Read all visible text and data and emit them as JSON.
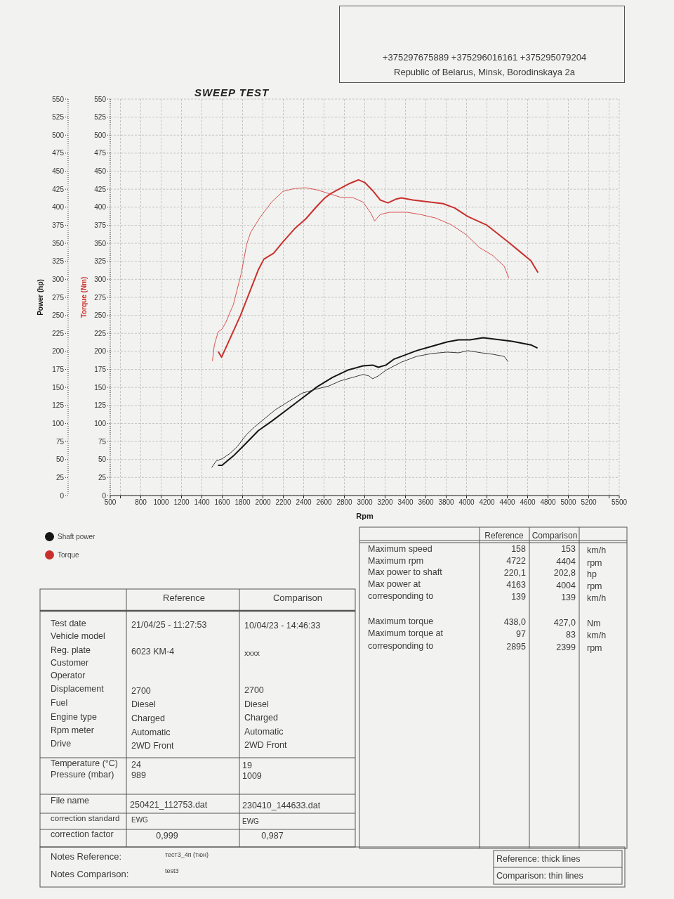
{
  "chart_data": {
    "type": "line",
    "title": "SWEEP TEST",
    "xlabel": "Rpm",
    "ylabel": "Power (hp)",
    "y2label": "Torque (Nm)",
    "xlim": [
      500,
      5500
    ],
    "xticks": [
      500,
      {
        "value": 600,
        "label": null
      },
      800,
      1000,
      1200,
      1400,
      1600,
      1800,
      2000,
      2200,
      2400,
      2600,
      2800,
      3000,
      3200,
      3400,
      3600,
      3800,
      4000,
      4200,
      4400,
      4600,
      4800,
      5000,
      5200,
      {
        "value": 5400,
        "label": null
      },
      5500
    ],
    "ylim": [
      0,
      550
    ],
    "yticks": [
      0,
      25,
      50,
      75,
      100,
      125,
      150,
      175,
      200,
      225,
      250,
      275,
      300,
      325,
      350,
      375,
      400,
      425,
      450,
      475,
      500,
      525,
      550
    ],
    "y2lim": [
      0,
      550
    ],
    "y2ticks": [
      0,
      25,
      50,
      75,
      100,
      125,
      150,
      175,
      200,
      225,
      250,
      275,
      300,
      325,
      350,
      375,
      400,
      425,
      450,
      475,
      500,
      525,
      550
    ],
    "grid": true,
    "legend": "bottom left",
    "series": [
      {
        "name": "Shaft power",
        "color": "#151515",
        "x": [
          1564,
          1598,
          1710,
          1823,
          1954,
          2085,
          2235,
          2385,
          2534,
          2684,
          2834,
          2984,
          3078,
          3134,
          3209,
          3284,
          3377,
          3509,
          3658,
          3808,
          3921,
          4033,
          4163,
          4333,
          4445,
          4632,
          4692
        ],
        "values": [
          42,
          42,
          55,
          71,
          90,
          103,
          119,
          135,
          151,
          164,
          174,
          180,
          181,
          178,
          181,
          189,
          194,
          201,
          207,
          213,
          216,
          216,
          219,
          216,
          214,
          209,
          205
        ]
      },
      {
        "color": "#3a3a3a",
        "x": [
          1497,
          1542,
          1598,
          1673,
          1748,
          1841,
          1916,
          2010,
          2122,
          2235,
          2385,
          2534,
          2647,
          2759,
          2909,
          2984,
          3040,
          3078,
          3134,
          3209,
          3359,
          3509,
          3658,
          3808,
          3921,
          4014,
          4146,
          4258,
          4370,
          4407
        ],
        "values": [
          39,
          48,
          51,
          58,
          68,
          85,
          95,
          106,
          119,
          129,
          142,
          148,
          152,
          159,
          165,
          168,
          166,
          162,
          166,
          174,
          185,
          193,
          197,
          199,
          198,
          201,
          198,
          196,
          193,
          186
        ]
      },
      {
        "name": "Torque",
        "color": "#c9302c",
        "axis": "y2",
        "x": [
          1564,
          1594,
          1780,
          1954,
          2010,
          2104,
          2197,
          2310,
          2422,
          2534,
          2609,
          2666,
          2759,
          2853,
          2939,
          3003,
          3078,
          3153,
          3228,
          3302,
          3359,
          3471,
          3584,
          3771,
          3883,
          4014,
          4201,
          4407,
          4519,
          4631,
          4699
        ],
        "values": [
          199,
          192,
          250,
          313,
          328,
          336,
          352,
          370,
          384,
          402,
          413,
          419,
          426,
          433,
          438,
          434,
          423,
          410,
          406,
          411,
          413,
          410,
          408,
          405,
          399,
          387,
          375,
          352,
          339,
          326,
          310
        ]
      },
      {
        "color": "#d9534f",
        "axis": "y2",
        "x": [
          1504,
          1523,
          1560,
          1598,
          1635,
          1691,
          1710,
          1785,
          1841,
          1879,
          1972,
          2085,
          2197,
          2310,
          2422,
          2534,
          2647,
          2759,
          2890,
          2984,
          3059,
          3097,
          3153,
          3246,
          3415,
          3546,
          3696,
          3846,
          3996,
          4127,
          4258,
          4370,
          4415
        ],
        "values": [
          187,
          209,
          227,
          231,
          240,
          259,
          265,
          307,
          349,
          365,
          386,
          407,
          422,
          426,
          427,
          424,
          419,
          414,
          413,
          407,
          392,
          381,
          390,
          393,
          393,
          390,
          385,
          376,
          362,
          344,
          333,
          318,
          302
        ]
      }
    ],
    "annotations": [
      "+375297675889  +375296016161  +375295079204",
      "Republic of Belarus, Minsk, Borodinskaya 2a",
      "Reference: thick lines",
      "Comparison: thin lines",
      "Notes Reference:",
      "тест3_4п (тюн)",
      "Notes Comparison:",
      "test3",
      "Reference",
      "Comparison",
      "Test date",
      "21/04/25 - 11:27:53",
      "10/04/23 - 14:46:33",
      "Vehicle model",
      "Reg. plate",
      "6023 KM-4",
      "xxxx",
      "Customer",
      "Operator",
      "Displacement",
      "2700",
      "2700",
      "Fuel",
      "Diesel",
      "Diesel",
      "Engine type",
      "Charged",
      "Charged",
      "Rpm meter",
      "Automatic",
      "Automatic",
      "Drive",
      "2WD Front",
      "2WD Front",
      "Temperature (°C)",
      "24",
      "19",
      "Pressure (mbar)",
      "989",
      "1009",
      "File name",
      "250421_112753.dat",
      "230410_144633.dat",
      "correction standard",
      "EWG",
      "EWG",
      "correction factor",
      "0,999",
      "0,987",
      "Reference",
      "Comparison",
      "Maximum speed",
      "158",
      "153",
      "km/h",
      "Maximum rpm",
      "4722",
      "4404",
      "rpm",
      "Max power to shaft",
      "220,1",
      "202,8",
      "hp",
      "Max power at",
      "4163",
      "4004",
      "rpm",
      "corresponding to",
      "139",
      "139",
      "km/h",
      "Maximum torque",
      "438,0",
      "427,0",
      "Nm",
      "Maximum torque at",
      "97",
      "83",
      "km/h",
      "corresponding to",
      "2895",
      "2399",
      "rpm"
    ]
  }
}
